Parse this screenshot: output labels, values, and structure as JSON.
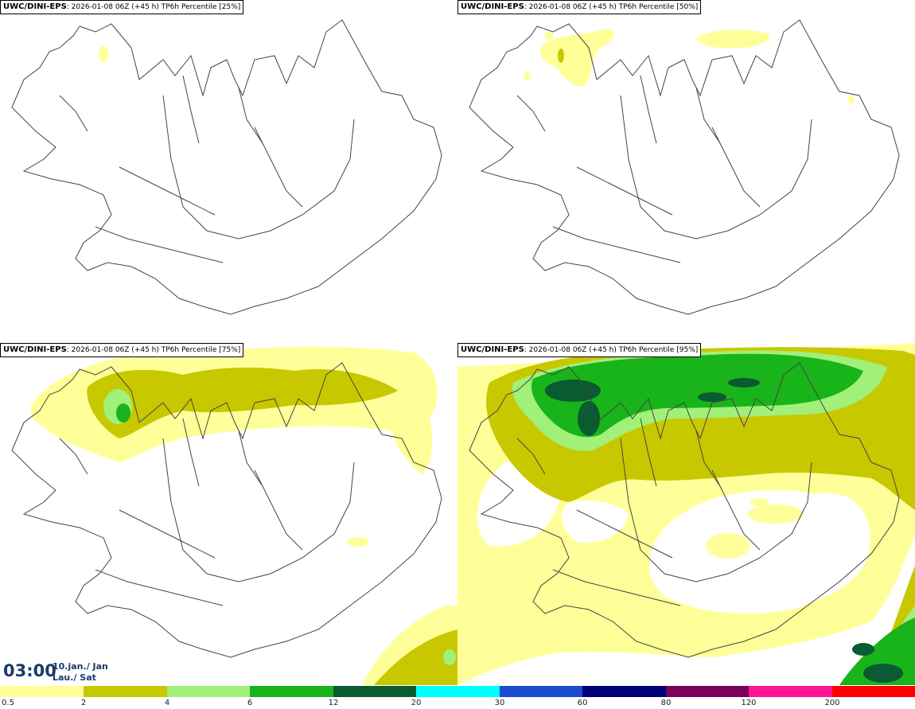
{
  "panels": [
    {
      "model": "UWC/DINI-EPS",
      "meta": ": 2026-01-08 06Z (+45 h) ",
      "product": "TP6h Percentile [25%]"
    },
    {
      "model": "UWC/DINI-EPS",
      "meta": ": 2026-01-08 06Z (+45 h) ",
      "product": "TP6h Percentile [50%]"
    },
    {
      "model": "UWC/DINI-EPS",
      "meta": ": 2026-01-08 06Z (+45 h) ",
      "product": "TP6h Percentile [75%]"
    },
    {
      "model": "UWC/DINI-EPS",
      "meta": ": 2026-01-08 06Z (+45 h) ",
      "product": "TP6h Percentile [95%]"
    }
  ],
  "valid_time": {
    "time": "03:00",
    "date_line1": "10.jan./ Jan",
    "date_line2": "Lau./ Sat"
  },
  "legend": {
    "ticks": [
      "0.5",
      "2",
      "4",
      "6",
      "12",
      "20",
      "30",
      "60",
      "80",
      "120",
      "200"
    ],
    "colors": [
      "#ffff99",
      "#c8c800",
      "#a0f07a",
      "#19b419",
      "#0a5a32",
      "#00ffff",
      "#1a4bd2",
      "#00007a",
      "#7a005a",
      "#ff1493",
      "#ff0000"
    ]
  },
  "colors": {
    "light_yellow": "#ffff99",
    "olive": "#c8c800",
    "light_green": "#a0f07a",
    "green": "#19b419",
    "dark_green": "#0a5a32",
    "coast": "#444444"
  }
}
